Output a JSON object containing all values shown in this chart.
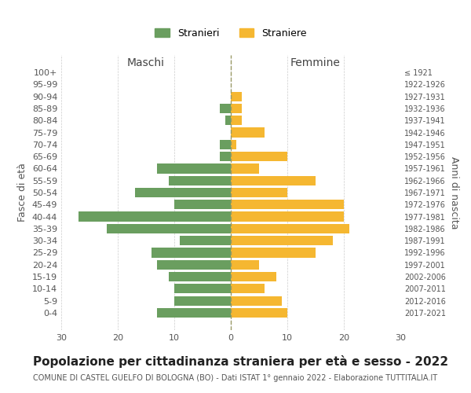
{
  "age_groups": [
    "100+",
    "95-99",
    "90-94",
    "85-89",
    "80-84",
    "75-79",
    "70-74",
    "65-69",
    "60-64",
    "55-59",
    "50-54",
    "45-49",
    "40-44",
    "35-39",
    "30-34",
    "25-29",
    "20-24",
    "15-19",
    "10-14",
    "5-9",
    "0-4"
  ],
  "birth_years": [
    "≤ 1921",
    "1922-1926",
    "1927-1931",
    "1932-1936",
    "1937-1941",
    "1942-1946",
    "1947-1951",
    "1952-1956",
    "1957-1961",
    "1962-1966",
    "1967-1971",
    "1972-1976",
    "1977-1981",
    "1982-1986",
    "1987-1991",
    "1992-1996",
    "1997-2001",
    "2002-2006",
    "2007-2011",
    "2012-2016",
    "2017-2021"
  ],
  "males": [
    0,
    0,
    0,
    2,
    1,
    0,
    2,
    2,
    13,
    11,
    17,
    10,
    27,
    22,
    9,
    14,
    13,
    11,
    10,
    10,
    13
  ],
  "females": [
    0,
    0,
    2,
    2,
    2,
    6,
    1,
    10,
    5,
    15,
    10,
    20,
    20,
    21,
    18,
    15,
    5,
    8,
    6,
    9,
    10
  ],
  "male_color": "#6a9e5f",
  "female_color": "#f5b731",
  "male_label": "Stranieri",
  "female_label": "Straniere",
  "title": "Popolazione per cittadinanza straniera per età e sesso - 2022",
  "subtitle": "COMUNE DI CASTEL GUELFO DI BOLOGNA (BO) - Dati ISTAT 1° gennaio 2022 - Elaborazione TUTTITALIA.IT",
  "xlabel_left": "Maschi",
  "xlabel_right": "Femmine",
  "ylabel_left": "Fasce di età",
  "ylabel_right": "Anni di nascita",
  "xlim": 30,
  "background_color": "#ffffff",
  "grid_color": "#cccccc",
  "bar_height": 0.8,
  "dashed_line_color": "#999966",
  "title_fontsize": 11,
  "subtitle_fontsize": 7,
  "axis_label_fontsize": 9,
  "tick_fontsize": 8
}
